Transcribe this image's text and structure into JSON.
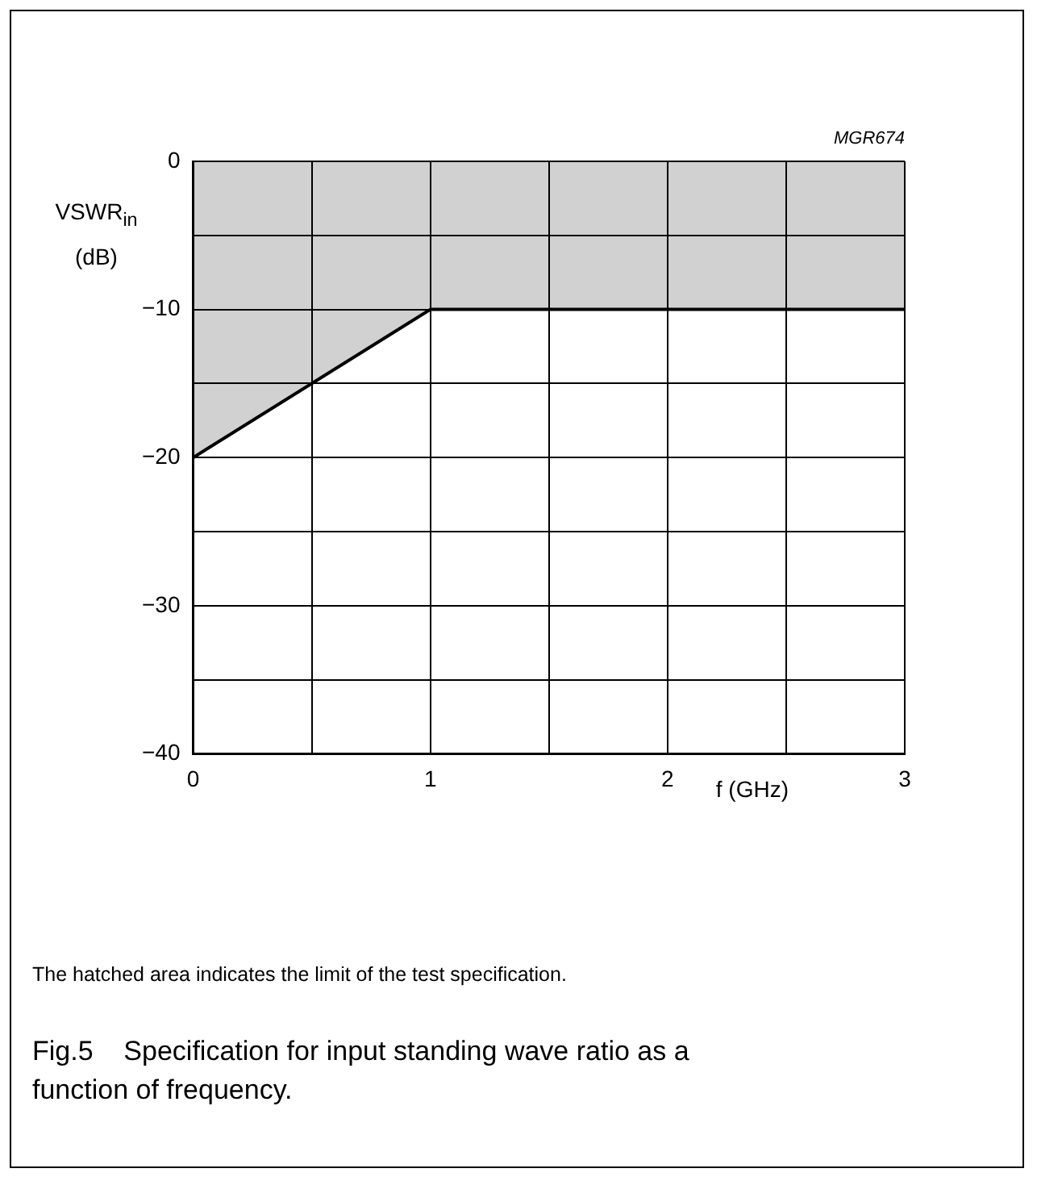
{
  "chart_data": {
    "type": "area",
    "ylabel": "VSWR$_{in}$ (dB)",
    "xlabel": "f (GHz)",
    "annotations": [
      "MGR674",
      "The hatched area indicates the limit of the test specification.",
      "Fig.5    Specification for input standing wave ratio as a function of frequency."
    ],
    "x": [
      0,
      1,
      3
    ],
    "series": [
      {
        "color": "#000000",
        "values": [
          -20,
          -10,
          -10
        ]
      }
    ],
    "xlim": [
      0,
      3
    ],
    "ylim": [
      -40,
      0
    ],
    "xticks": [
      0,
      {
        "value": 0.5,
        "label": null
      },
      1,
      {
        "value": 1.5,
        "label": null
      },
      2,
      {
        "value": 2.5,
        "label": null
      },
      3
    ],
    "yticks": [
      -40,
      {
        "value": -35,
        "label": null
      },
      -30,
      {
        "value": -25,
        "label": null
      },
      -20,
      {
        "value": -15,
        "label": null
      },
      -10,
      {
        "value": -5,
        "label": null
      },
      0
    ],
    "grid": true,
    "marker": "none",
    "line_style": "solid"
  }
}
